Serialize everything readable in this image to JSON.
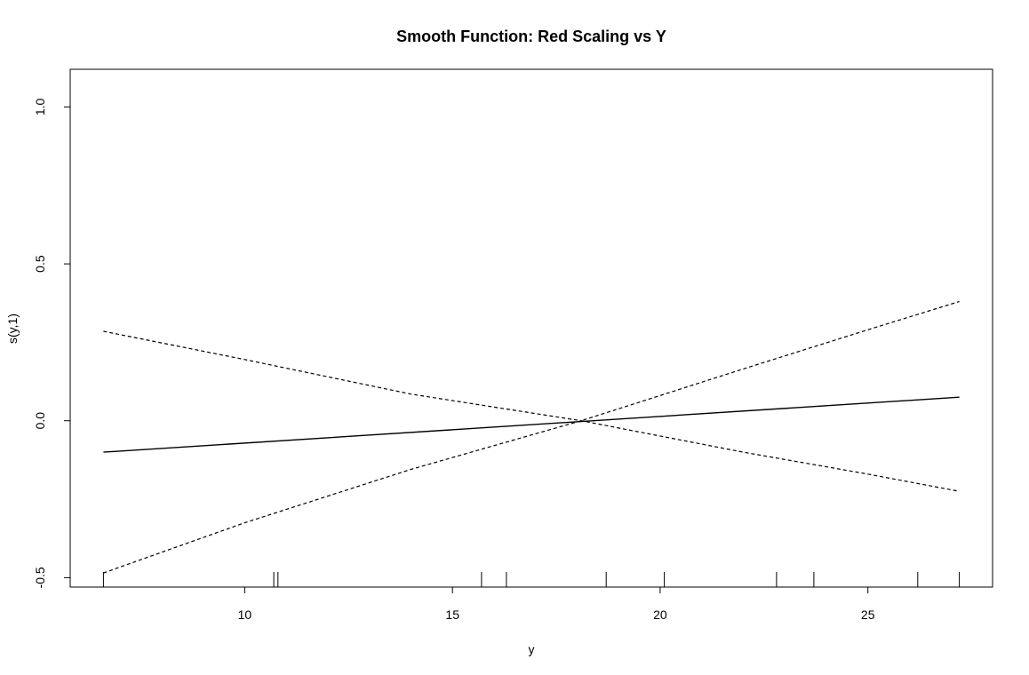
{
  "chart_data": {
    "type": "line",
    "title": "Smooth Function: Red Scaling vs Y",
    "xlabel": "y",
    "ylabel": "s(y,1)",
    "xlim": [
      5.8,
      28.0
    ],
    "ylim": [
      -0.53,
      1.12
    ],
    "xticks": [
      10,
      15,
      20,
      25
    ],
    "xtick_labels": [
      "10",
      "15",
      "20",
      "25"
    ],
    "yticks": [
      -0.5,
      0.0,
      0.5,
      1.0
    ],
    "ytick_labels": [
      "-0.5",
      "0.0",
      "0.5",
      "1.0"
    ],
    "grid": false,
    "legend": "none",
    "series": [
      {
        "style": "solid",
        "x": [
          6.6,
          27.2
        ],
        "y": [
          -0.1,
          0.075
        ]
      },
      {
        "style": "dashed",
        "x": [
          6.6,
          10.0,
          14.0,
          18.1,
          22.0,
          25.0,
          27.2
        ],
        "y": [
          0.285,
          0.195,
          0.085,
          0.0,
          -0.1,
          -0.17,
          -0.225
        ]
      },
      {
        "style": "dashed",
        "x": [
          6.6,
          10.0,
          14.0,
          18.1,
          22.0,
          25.0,
          27.2
        ],
        "y": [
          -0.485,
          -0.325,
          -0.155,
          0.0,
          0.165,
          0.29,
          0.38
        ]
      }
    ],
    "rug": [
      6.6,
      10.7,
      10.8,
      15.7,
      16.3,
      18.7,
      20.1,
      22.8,
      23.7,
      26.2,
      27.2
    ]
  }
}
